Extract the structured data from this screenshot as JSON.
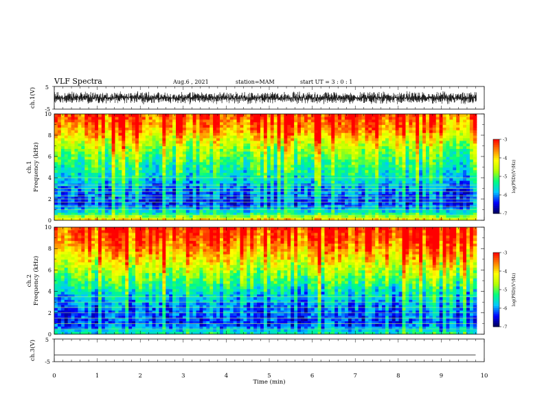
{
  "header": {
    "title": "VLF Spectra",
    "date": "Aug.6 , 2021",
    "station": "station=MAM",
    "start": "start UT = 3 : 0 : 1"
  },
  "chart_data": [
    {
      "type": "line",
      "panel": "ch1-waveform",
      "ylabel": "ch.1(V)",
      "ylim": [
        -5,
        5
      ],
      "y_ticks": [
        "5",
        "-5"
      ],
      "xlim": [
        0,
        10
      ],
      "trace": "dense broadband noise, amplitude about +/-3 V",
      "trace_amplitude": 3.0
    },
    {
      "type": "heatmap",
      "panel": "ch1-spectrogram",
      "ylabel": "ch.1\nFrequency (kHz)",
      "ylabel_line1": "ch.1",
      "ylabel_line2": "Frequency (kHz)",
      "ylim": [
        0,
        10
      ],
      "y_ticks": [
        "0",
        "2",
        "4",
        "6",
        "8",
        "10"
      ],
      "xlim": [
        0,
        10
      ],
      "colorbar": {
        "label": "log(PSD)(V²/Hz)",
        "range": [
          -7,
          -3
        ],
        "ticks": [
          "-3",
          "-4",
          "-5",
          "-6",
          "-7"
        ],
        "colors": [
          "#00005a",
          "#0000ff",
          "#00c8ff",
          "#00ff80",
          "#b4ff00",
          "#ffff00",
          "#ff8000",
          "#ff0000"
        ]
      },
      "bands": [
        {
          "f_khz": 0,
          "log_psd": -3.8
        },
        {
          "f_khz": 0.5,
          "log_psd": -5.2
        },
        {
          "f_khz": 1.5,
          "log_psd": -6.3
        },
        {
          "f_khz": 3.0,
          "log_psd": -6.0
        },
        {
          "f_khz": 4.0,
          "log_psd": -5.6
        },
        {
          "f_khz": 5.5,
          "log_psd": -5.2
        },
        {
          "f_khz": 7.0,
          "log_psd": -4.6
        },
        {
          "f_khz": 8.5,
          "log_psd": -3.7
        },
        {
          "f_khz": 10.0,
          "log_psd": -3.2
        }
      ],
      "horizontal_lines_khz": [
        0.3,
        0.5,
        1.0,
        1.3,
        1.7,
        2.0,
        2.3,
        2.7,
        3.0,
        3.3,
        4.0
      ]
    },
    {
      "type": "heatmap",
      "panel": "ch2-spectrogram",
      "ylabel_line1": "ch.2",
      "ylabel_line2": "Frequency (kHz)",
      "ylim": [
        0,
        10
      ],
      "y_ticks": [
        "0",
        "2",
        "4",
        "6",
        "8",
        "10"
      ],
      "xlim": [
        0,
        10
      ],
      "colorbar": {
        "label": "log(PSD)(V²/Hz)",
        "range": [
          -7,
          -3
        ],
        "ticks": [
          "-3",
          "-4",
          "-5",
          "-6",
          "-7"
        ],
        "colors": [
          "#00005a",
          "#0000ff",
          "#00c8ff",
          "#00ff80",
          "#b4ff00",
          "#ffff00",
          "#ff8000",
          "#ff0000"
        ]
      },
      "bands": [
        {
          "f_khz": 0,
          "log_psd": -5.4
        },
        {
          "f_khz": 1.0,
          "log_psd": -6.3
        },
        {
          "f_khz": 2.5,
          "log_psd": -6.1
        },
        {
          "f_khz": 4.0,
          "log_psd": -5.6
        },
        {
          "f_khz": 5.5,
          "log_psd": -4.9
        },
        {
          "f_khz": 7.0,
          "log_psd": -4.2
        },
        {
          "f_khz": 8.5,
          "log_psd": -3.5
        },
        {
          "f_khz": 10.0,
          "log_psd": -3.1
        }
      ],
      "horizontal_lines_khz": [
        0.5,
        1.0,
        1.5,
        2.0,
        2.5,
        3.0,
        3.5
      ]
    },
    {
      "type": "line",
      "panel": "ch3-waveform",
      "ylabel": "ch.3(V)",
      "ylim": [
        -5,
        5
      ],
      "y_ticks": [
        "5",
        "-5"
      ],
      "xlim": [
        0,
        10
      ],
      "x": [
        0,
        9.8
      ],
      "y": [
        -2,
        -2
      ]
    }
  ],
  "xaxis": {
    "label": "Time (min)",
    "ticks": [
      "0",
      "1",
      "2",
      "3",
      "4",
      "5",
      "6",
      "7",
      "8",
      "9",
      "10"
    ],
    "data_end_min": 9.82
  }
}
